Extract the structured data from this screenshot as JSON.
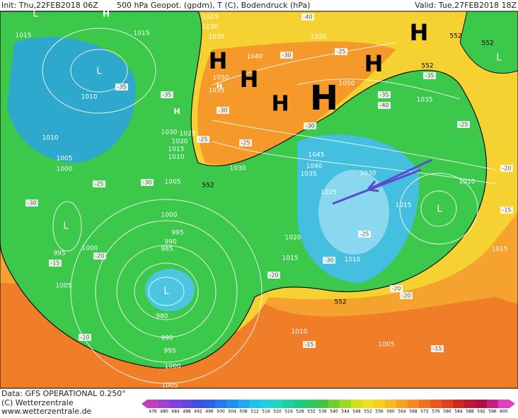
{
  "header": {
    "init": "Init: Thu,22FEB2018 06Z",
    "title": "500 hPa Geopot. (gpdm), T (C), Bodendruck (hPa)",
    "valid": "Valid: Tue,27FEB2018 18Z"
  },
  "footer": {
    "data": "Data: GFS OPERATIONAL 0.250°",
    "copyright": "(C) Wetterzentrale",
    "url": "www.wetterzentrale.de"
  },
  "colorbar": {
    "labels": [
      476,
      480,
      484,
      488,
      492,
      496,
      500,
      504,
      508,
      512,
      516,
      520,
      524,
      528,
      532,
      536,
      540,
      544,
      548,
      552,
      556,
      560,
      564,
      568,
      572,
      576,
      580,
      584,
      588,
      592,
      596,
      600
    ]
  },
  "map": {
    "pressure_labels": [
      "1015",
      "1015",
      "1025",
      "1030",
      "1035",
      "1020",
      "1040",
      "1050",
      "1035",
      "1050",
      "1035",
      "1010",
      "1010",
      "1005",
      "1000",
      "1030",
      "1025",
      "1020",
      "1015",
      "1010",
      "1005",
      "1030",
      "1045",
      "1040",
      "1035",
      "1030",
      "1025",
      "1015",
      "1020",
      "1015",
      "1010",
      "1000",
      "995",
      "990",
      "985",
      "1000",
      "995",
      "1005",
      "980",
      "990",
      "995",
      "1000",
      "1005",
      "1010",
      "1005",
      "1010",
      "1015"
    ],
    "temperature_labels": [
      "-40",
      "-30",
      "-25",
      "-35",
      "-35",
      "-30",
      "-25",
      "-25",
      "-30",
      "-35",
      "-40",
      "-35",
      "-25",
      "-25",
      "-30",
      "-30",
      "-15",
      "-20",
      "-30",
      "-20",
      "-25",
      "-20",
      "-20",
      "-10",
      "-15",
      "-15",
      "-15",
      "-20"
    ],
    "height_labels": [
      "552",
      "552",
      "552",
      "552",
      "552"
    ],
    "highs": [
      "H",
      "H",
      "H",
      "H",
      "H",
      "H",
      "H",
      "H",
      "H"
    ],
    "lows": [
      "L",
      "L",
      "L",
      "L",
      "L",
      "L"
    ]
  }
}
